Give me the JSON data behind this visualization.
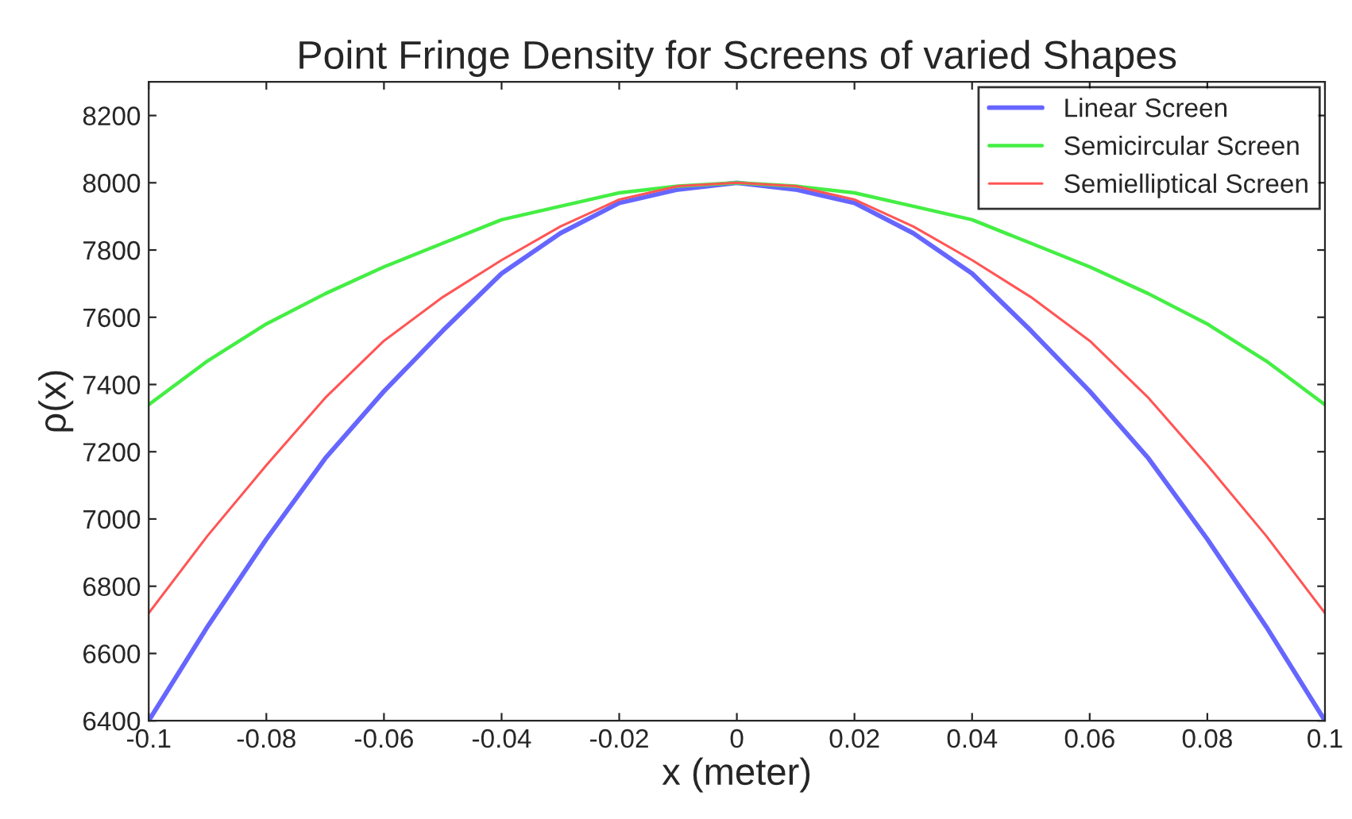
{
  "chart_data": {
    "type": "line",
    "title": "Point Fringe Density for Screens of varied Shapes",
    "xlabel": "x (meter)",
    "ylabel": "ρ(x)",
    "x": [
      -0.1,
      -0.09,
      -0.08,
      -0.07,
      -0.06,
      -0.05,
      -0.04,
      -0.03,
      -0.02,
      -0.01,
      0,
      0.01,
      0.02,
      0.03,
      0.04,
      0.05,
      0.06,
      0.07,
      0.08,
      0.09,
      0.1
    ],
    "series": [
      {
        "name": "Linear Screen",
        "color": "#6666ff",
        "values": [
          6400,
          6680,
          6940,
          7180,
          7380,
          7560,
          7730,
          7850,
          7940,
          7980,
          8000,
          7980,
          7940,
          7850,
          7730,
          7560,
          7380,
          7180,
          6940,
          6680,
          6400
        ]
      },
      {
        "name": "Semicircular Screen",
        "color": "#44ee44",
        "values": [
          7340,
          7470,
          7580,
          7670,
          7750,
          7820,
          7890,
          7930,
          7970,
          7990,
          8000,
          7990,
          7970,
          7930,
          7890,
          7820,
          7750,
          7670,
          7580,
          7470,
          7340
        ]
      },
      {
        "name": "Semielliptical Screen",
        "color": "#ff5555",
        "values": [
          6720,
          6950,
          7160,
          7360,
          7530,
          7660,
          7770,
          7870,
          7950,
          7990,
          8000,
          7990,
          7950,
          7870,
          7770,
          7660,
          7530,
          7360,
          7160,
          6950,
          6720
        ]
      }
    ],
    "xlim": [
      -0.1,
      0.1
    ],
    "ylim": [
      6400,
      8300
    ],
    "xticks": [
      -0.1,
      -0.08,
      -0.06,
      -0.04,
      -0.02,
      0,
      0.02,
      0.04,
      0.06,
      0.08,
      0.1
    ],
    "yticks": [
      6400,
      6600,
      6800,
      7000,
      7200,
      7400,
      7600,
      7800,
      8000,
      8200
    ],
    "grid": false,
    "legend": "top right",
    "marker": "none",
    "line_style": "solid"
  }
}
